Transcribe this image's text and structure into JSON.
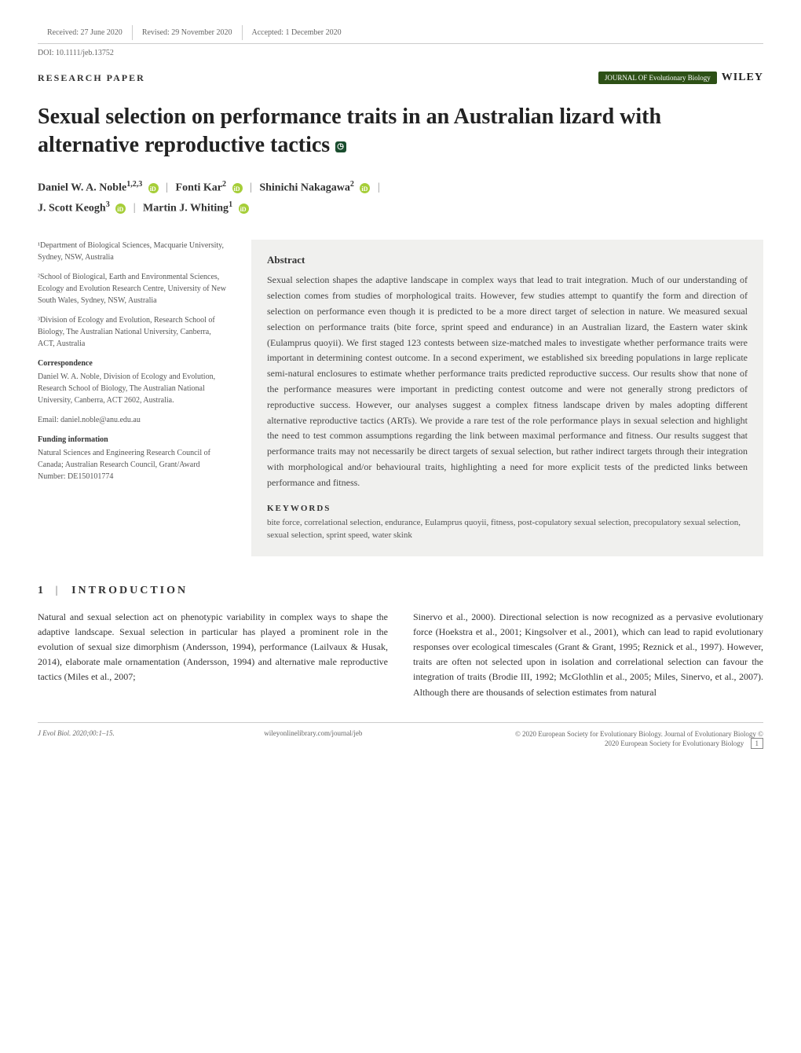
{
  "header": {
    "received": "Received: 27 June 2020",
    "revised": "Revised: 29 November 2020",
    "accepted": "Accepted: 1 December 2020",
    "doi": "DOI: 10.1111/jeb.13752",
    "paper_type": "RESEARCH PAPER",
    "journal_badge": "JOURNAL OF Evolutionary Biology",
    "publisher": "WILEY"
  },
  "title": "Sexual selection on performance traits in an Australian lizard with alternative reproductive tactics",
  "authors": {
    "a1_name": "Daniel W. A. Noble",
    "a1_aff": "1,2,3",
    "a2_name": "Fonti Kar",
    "a2_aff": "2",
    "a3_name": "Shinichi Nakagawa",
    "a3_aff": "2",
    "a4_name": "J. Scott Keogh",
    "a4_aff": "3",
    "a5_name": "Martin J. Whiting",
    "a5_aff": "1"
  },
  "affiliations": {
    "aff1": "¹Department of Biological Sciences, Macquarie University, Sydney, NSW, Australia",
    "aff2": "²School of Biological, Earth and Environmental Sciences, Ecology and Evolution Research Centre, University of New South Wales, Sydney, NSW, Australia",
    "aff3": "³Division of Ecology and Evolution, Research School of Biology, The Australian National University, Canberra, ACT, Australia"
  },
  "correspondence": {
    "head": "Correspondence",
    "text": "Daniel W. A. Noble, Division of Ecology and Evolution, Research School of Biology, The Australian National University, Canberra, ACT 2602, Australia.",
    "email": "Email: daniel.noble@anu.edu.au"
  },
  "funding": {
    "head": "Funding information",
    "text": "Natural Sciences and Engineering Research Council of Canada; Australian Research Council, Grant/Award Number: DE150101774"
  },
  "abstract": {
    "head": "Abstract",
    "text": "Sexual selection shapes the adaptive landscape in complex ways that lead to trait integration. Much of our understanding of selection comes from studies of morphological traits. However, few studies attempt to quantify the form and direction of selection on performance even though it is predicted to be a more direct target of selection in nature. We measured sexual selection on performance traits (bite force, sprint speed and endurance) in an Australian lizard, the Eastern water skink (Eulamprus quoyii). We first staged 123 contests between size-matched males to investigate whether performance traits were important in determining contest outcome. In a second experiment, we established six breeding populations in large replicate semi-natural enclosures to estimate whether performance traits predicted reproductive success. Our results show that none of the performance measures were important in predicting contest outcome and were not generally strong predictors of reproductive success. However, our analyses suggest a complex fitness landscape driven by males adopting different alternative reproductive tactics (ARTs). We provide a rare test of the role performance plays in sexual selection and highlight the need to test common assumptions regarding the link between maximal performance and fitness. Our results suggest that performance traits may not necessarily be direct targets of sexual selection, but rather indirect targets through their integration with morphological and/or behavioural traits, highlighting a need for more explicit tests of the predicted links between performance and fitness.",
    "keywords_head": "KEYWORDS",
    "keywords": "bite force, correlational selection, endurance, Eulamprus quoyii, fitness, post-copulatory sexual selection, precopulatory sexual selection, sexual selection, sprint speed, water skink"
  },
  "intro": {
    "head": "INTRODUCTION",
    "num": "1",
    "col1": "Natural and sexual selection act on phenotypic variability in complex ways to shape the adaptive landscape. Sexual selection in particular has played a prominent role in the evolution of sexual size dimorphism (Andersson, 1994), performance (Lailvaux & Husak, 2014), elaborate male ornamentation (Andersson, 1994) and alternative male reproductive tactics (Miles et al., 2007;",
    "col2": "Sinervo et al., 2000). Directional selection is now recognized as a pervasive evolutionary force (Hoekstra et al., 2001; Kingsolver et al., 2001), which can lead to rapid evolutionary responses over ecological timescales (Grant & Grant, 1995; Reznick et al., 1997). However, traits are often not selected upon in isolation and correlational selection can favour the integration of traits (Brodie III, 1992; McGlothlin et al., 2005; Miles, Sinervo, et al., 2007). Although there are thousands of selection estimates from natural"
  },
  "footer": {
    "citation": "J Evol Biol. 2020;00:1–15.",
    "url": "wileyonlinelibrary.com/journal/jeb",
    "copyright": "© 2020 European Society for Evolutionary Biology. Journal of Evolutionary Biology © 2020 European Society for Evolutionary Biology",
    "page": "1"
  },
  "colors": {
    "badge_bg": "#2d5016",
    "orcid_bg": "#a6ce39",
    "abstract_bg": "#f0f0ee",
    "text": "#333333",
    "muted": "#666666"
  }
}
